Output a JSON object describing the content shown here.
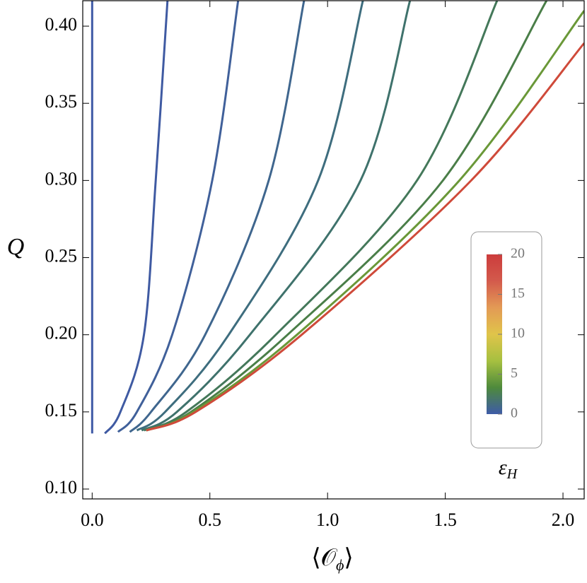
{
  "chart_data": {
    "type": "line",
    "xlabel": {
      "open": "⟨𝒪",
      "subscript": "ϕ",
      "close": "⟩"
    },
    "ylabel": "Q",
    "xlim": [
      -0.04,
      2.09
    ],
    "ylim": [
      0.0936,
      0.4165
    ],
    "xticks": [
      {
        "value": 0,
        "label": "0.0"
      },
      {
        "value": 0.5,
        "label": "0.5"
      },
      {
        "value": 1,
        "label": "1.0"
      },
      {
        "value": 1.5,
        "label": "1.5"
      },
      {
        "value": 2,
        "label": "2.0"
      }
    ],
    "yticks": [
      {
        "value": 0.1,
        "label": "0.10"
      },
      {
        "value": 0.15,
        "label": "0.15"
      },
      {
        "value": 0.2,
        "label": "0.20"
      },
      {
        "value": 0.25,
        "label": "0.25"
      },
      {
        "value": 0.3,
        "label": "0.30"
      },
      {
        "value": 0.35,
        "label": "0.35"
      },
      {
        "value": 0.4,
        "label": "0.40"
      }
    ],
    "series": [
      {
        "color": "#3f5aa6",
        "x": [
          0,
          0
        ],
        "values": [
          0.136,
          0.4165
        ]
      },
      {
        "color": "#3f5aa2",
        "x": [
          0.054,
          0.12,
          0.22,
          0.27,
          0.32
        ],
        "values": [
          0.136,
          0.15,
          0.2,
          0.3,
          0.4165
        ]
      },
      {
        "color": "#40609a",
        "x": [
          0.11,
          0.19,
          0.34,
          0.51,
          0.62
        ],
        "values": [
          0.137,
          0.15,
          0.2,
          0.3,
          0.4165
        ]
      },
      {
        "color": "#3f668e",
        "x": [
          0.16,
          0.25,
          0.48,
          0.75,
          0.9
        ],
        "values": [
          0.137,
          0.15,
          0.2,
          0.3,
          0.4165
        ]
      },
      {
        "color": "#3e6d7e",
        "x": [
          0.19,
          0.31,
          0.58,
          0.96,
          1.15
        ],
        "values": [
          0.138,
          0.15,
          0.2,
          0.3,
          0.4165
        ]
      },
      {
        "color": "#3f726c",
        "x": [
          0.21,
          0.36,
          0.67,
          1.14,
          1.35
        ],
        "values": [
          0.138,
          0.15,
          0.2,
          0.3,
          0.4165
        ]
      },
      {
        "color": "#44785a",
        "x": [
          0.22,
          0.4,
          0.78,
          1.38,
          1.72
        ],
        "values": [
          0.138,
          0.15,
          0.2,
          0.3,
          0.4165
        ]
      },
      {
        "color": "#4a7e48",
        "x": [
          0.23,
          0.42,
          0.83,
          1.49,
          1.93
        ],
        "values": [
          0.138,
          0.15,
          0.2,
          0.3,
          0.4165
        ]
      },
      {
        "color": "#6a9838",
        "x": [
          0.23,
          0.43,
          0.87,
          1.56,
          2.09
        ],
        "values": [
          0.138,
          0.15,
          0.2,
          0.3,
          0.41
        ]
      },
      {
        "color": "#cf4a3a",
        "x": [
          0.23,
          0.44,
          0.89,
          1.61,
          2.09
        ],
        "values": [
          0.138,
          0.15,
          0.2,
          0.3,
          0.389
        ]
      }
    ],
    "colorbar": {
      "label": {
        "symbol": "ε",
        "subscript": "H"
      },
      "range": [
        0,
        20
      ],
      "ticks": [
        0,
        5,
        10,
        15,
        20
      ],
      "colors": [
        "#3e5ba8",
        "#4e8a3c",
        "#a6c040",
        "#e0c44a",
        "#e39a55",
        "#d35a4c",
        "#cc3c3c"
      ]
    }
  }
}
